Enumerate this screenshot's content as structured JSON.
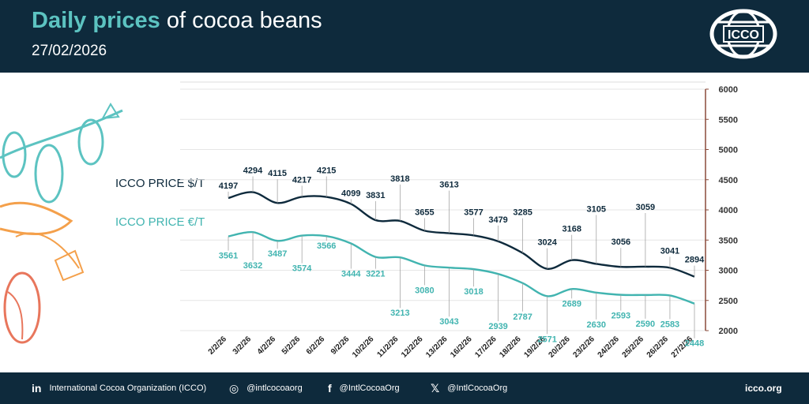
{
  "header": {
    "title_bold": "Daily prices",
    "title_rest": "of cocoa beans",
    "date": "27/02/2026"
  },
  "logo": {
    "text": "ICCO",
    "icon": "globe-logo-icon"
  },
  "footer": {
    "linkedin": {
      "icon": "linkedin-icon",
      "text": "International Cocoa Organization (ICCO)"
    },
    "instagram": {
      "icon": "instagram-icon",
      "text": "@intlcocoaorg"
    },
    "facebook": {
      "icon": "facebook-icon",
      "text": "@IntlCocoaOrg"
    },
    "x": {
      "icon": "x-icon",
      "text": "@IntlCocoaOrg"
    },
    "site": "icco.org"
  },
  "colors": {
    "usd": "#0e2a3c",
    "eur": "#41b4b0",
    "header": "#0e2a3c"
  },
  "chart_data": {
    "type": "line",
    "categories": [
      "2/2/26",
      "3/2/26",
      "4/2/26",
      "5/2/26",
      "6/2/26",
      "9/2/26",
      "10/2/26",
      "11/2/26",
      "12/2/26",
      "13/2/26",
      "16/2/26",
      "17/2/26",
      "18/2/26",
      "19/2/26",
      "20/2/26",
      "23/2/26",
      "24/2/26",
      "25/2/26",
      "26/2/26",
      "27/2/26"
    ],
    "series": [
      {
        "name": "ICCO PRICE $/T",
        "values": [
          4197,
          4294,
          4115,
          4217,
          4215,
          4099,
          3831,
          3818,
          3655,
          3613,
          3577,
          3479,
          3285,
          3024,
          3168,
          3105,
          3056,
          3059,
          3041,
          2894
        ]
      },
      {
        "name": "ICCO PRICE €/T",
        "values": [
          3561,
          3632,
          3487,
          3574,
          3566,
          3444,
          3221,
          3213,
          3080,
          3043,
          3018,
          2939,
          2787,
          2571,
          2689,
          2630,
          2593,
          2590,
          2583,
          2448
        ]
      }
    ],
    "ylim": [
      2000,
      6000
    ],
    "yticks": [
      "2000",
      "2500",
      "3000",
      "3500",
      "4000",
      "4500",
      "5000",
      "5500",
      "6000"
    ],
    "axis_position": "right",
    "grid": true,
    "legend": "left"
  }
}
